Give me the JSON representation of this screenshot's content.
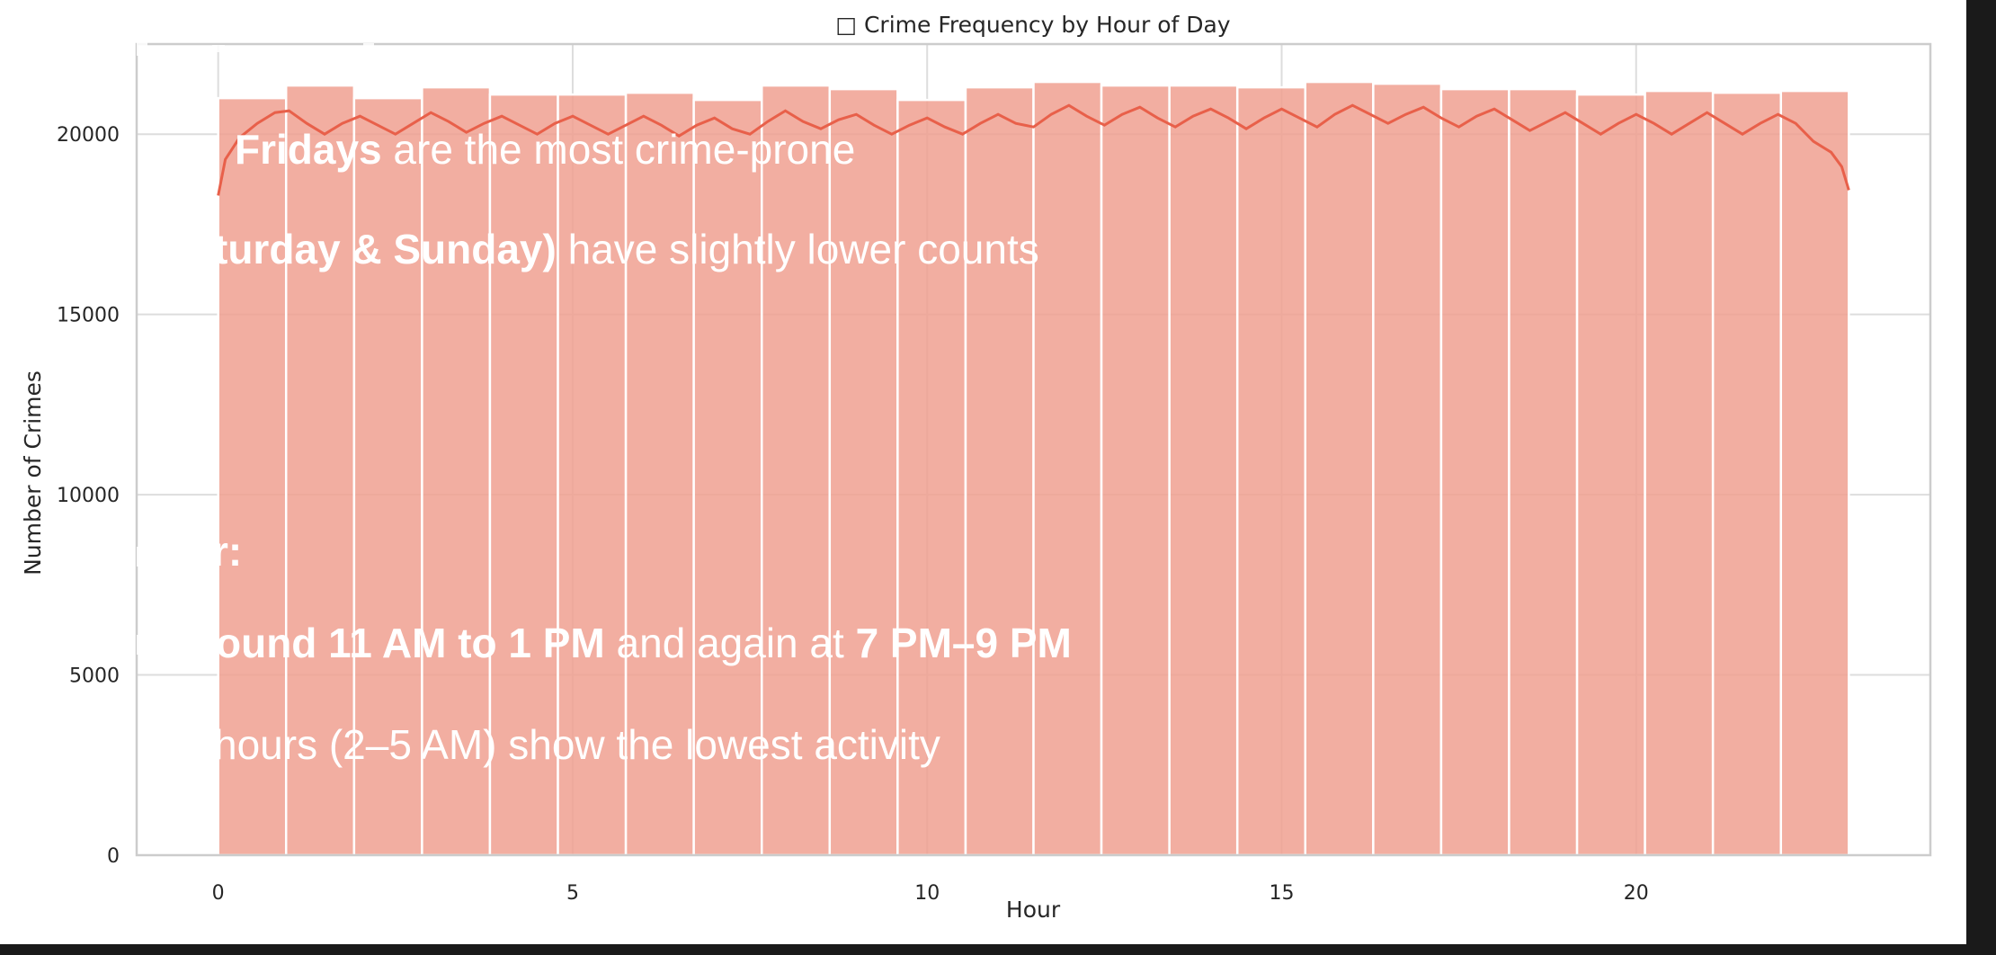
{
  "chart_data": {
    "type": "bar",
    "title": "□ Crime Frequency by Hour of Day",
    "xlabel": "Hour",
    "ylabel": "Number of Crimes",
    "xlim": [
      -1.15,
      24.15
    ],
    "ylim": [
      0,
      22500
    ],
    "xticks": [
      0,
      5,
      10,
      15,
      20
    ],
    "yticks": [
      0,
      5000,
      10000,
      15000,
      20000
    ],
    "grid": true,
    "bar_color": "#f0a090",
    "kde_color": "#e8604a",
    "bins": [
      {
        "x0": 0.0,
        "x1": 0.958,
        "value": 21000
      },
      {
        "x0": 0.958,
        "x1": 1.917,
        "value": 21350
      },
      {
        "x0": 1.917,
        "x1": 2.875,
        "value": 21000
      },
      {
        "x0": 2.875,
        "x1": 3.833,
        "value": 21300
      },
      {
        "x0": 3.833,
        "x1": 4.792,
        "value": 21100
      },
      {
        "x0": 4.792,
        "x1": 5.75,
        "value": 21100
      },
      {
        "x0": 5.75,
        "x1": 6.708,
        "value": 21150
      },
      {
        "x0": 6.708,
        "x1": 7.667,
        "value": 20950
      },
      {
        "x0": 7.667,
        "x1": 8.625,
        "value": 21350
      },
      {
        "x0": 8.625,
        "x1": 9.583,
        "value": 21250
      },
      {
        "x0": 9.583,
        "x1": 10.542,
        "value": 20950
      },
      {
        "x0": 10.542,
        "x1": 11.5,
        "value": 21300
      },
      {
        "x0": 11.5,
        "x1": 12.458,
        "value": 21450
      },
      {
        "x0": 12.458,
        "x1": 13.417,
        "value": 21350
      },
      {
        "x0": 13.417,
        "x1": 14.375,
        "value": 21350
      },
      {
        "x0": 14.375,
        "x1": 15.333,
        "value": 21300
      },
      {
        "x0": 15.333,
        "x1": 16.292,
        "value": 21450
      },
      {
        "x0": 16.292,
        "x1": 17.25,
        "value": 21400
      },
      {
        "x0": 17.25,
        "x1": 18.208,
        "value": 21250
      },
      {
        "x0": 18.208,
        "x1": 19.167,
        "value": 21250
      },
      {
        "x0": 19.167,
        "x1": 20.125,
        "value": 21100
      },
      {
        "x0": 20.125,
        "x1": 21.083,
        "value": 21200
      },
      {
        "x0": 21.083,
        "x1": 22.042,
        "value": 21150
      },
      {
        "x0": 22.042,
        "x1": 23.0,
        "value": 21200
      }
    ],
    "kde": {
      "x": [
        0.0,
        0.1,
        0.3,
        0.55,
        0.8,
        1.0,
        1.25,
        1.5,
        1.75,
        2.0,
        2.25,
        2.5,
        2.75,
        3.0,
        3.25,
        3.5,
        3.75,
        4.0,
        4.25,
        4.5,
        4.75,
        5.0,
        5.25,
        5.5,
        5.75,
        6.0,
        6.25,
        6.5,
        6.75,
        7.0,
        7.25,
        7.5,
        7.75,
        8.0,
        8.25,
        8.5,
        8.75,
        9.0,
        9.25,
        9.5,
        9.75,
        10.0,
        10.25,
        10.5,
        10.75,
        11.0,
        11.25,
        11.5,
        11.75,
        12.0,
        12.25,
        12.5,
        12.75,
        13.0,
        13.25,
        13.5,
        13.75,
        14.0,
        14.25,
        14.5,
        14.75,
        15.0,
        15.25,
        15.5,
        15.75,
        16.0,
        16.25,
        16.5,
        16.75,
        17.0,
        17.25,
        17.5,
        17.75,
        18.0,
        18.25,
        18.5,
        18.75,
        19.0,
        19.25,
        19.5,
        19.75,
        20.0,
        20.25,
        20.5,
        20.75,
        21.0,
        21.25,
        21.5,
        21.75,
        22.0,
        22.25,
        22.5,
        22.75,
        22.9,
        23.0
      ],
      "y": [
        18300,
        19300,
        19900,
        20300,
        20600,
        20650,
        20300,
        20000,
        20300,
        20500,
        20250,
        20000,
        20300,
        20600,
        20350,
        20050,
        20300,
        20500,
        20250,
        20000,
        20300,
        20500,
        20250,
        20000,
        20250,
        20500,
        20250,
        19950,
        20250,
        20450,
        20150,
        20000,
        20350,
        20650,
        20350,
        20150,
        20400,
        20550,
        20250,
        20000,
        20250,
        20450,
        20200,
        20000,
        20300,
        20550,
        20300,
        20200,
        20550,
        20800,
        20500,
        20250,
        20550,
        20750,
        20450,
        20200,
        20500,
        20700,
        20450,
        20150,
        20450,
        20700,
        20450,
        20200,
        20550,
        20800,
        20550,
        20300,
        20550,
        20750,
        20450,
        20200,
        20500,
        20700,
        20400,
        20100,
        20350,
        20600,
        20300,
        20000,
        20300,
        20550,
        20300,
        20000,
        20300,
        20600,
        20300,
        20000,
        20300,
        20550,
        20300,
        19800,
        19500,
        19100,
        18450
      ]
    }
  },
  "overlay_lines": [
    {
      "bold": "Fridays",
      "rest": " are the most crime-prone"
    },
    {
      "bold": "turday & Sunday)",
      "rest": " have slightly lower counts"
    },
    {
      "bold": "r:",
      "rest": ""
    },
    {
      "bold": "ound 11 AM to 1 PM",
      "rest": " and again at ",
      "bold2": "7 PM–9 PM"
    },
    {
      "bold": "",
      "rest": "hours (2–5 AM) show the lowest activity"
    }
  ]
}
